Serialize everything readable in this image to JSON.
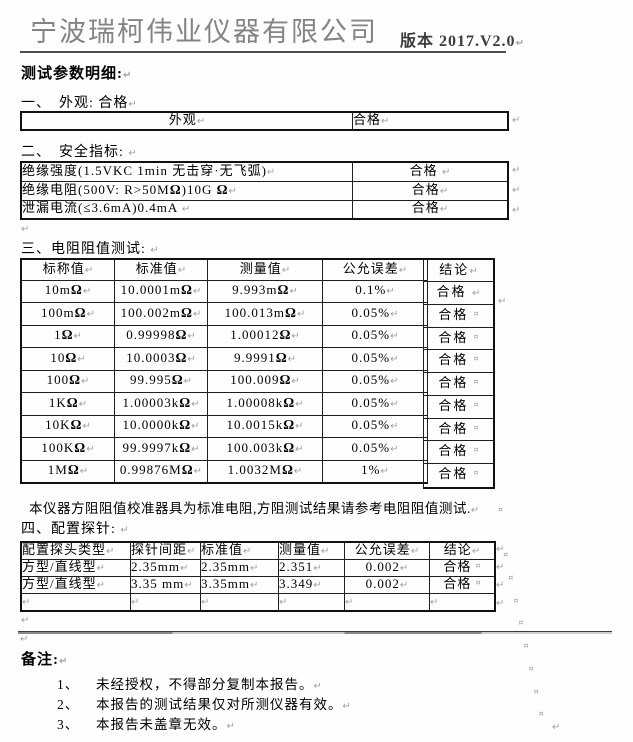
{
  "header": {
    "company": "宁波瑞柯伟业仪器有限公司",
    "version": "版本 2017.V2.0",
    "doc_title": "测试参数明细:"
  },
  "marks": {
    "para": "↵",
    "cell": "¤"
  },
  "sections": {
    "appearance": {
      "heading": "一、　外观: 合格",
      "cells": {
        "label": "外观",
        "result": "合格"
      }
    },
    "safety": {
      "heading": "二、　安全指标: ",
      "rows": [
        {
          "item": "绝缘强度(1.5VKC 1min 无击穿·无飞弧)",
          "result": "合格 "
        },
        {
          "item": "绝缘电阻(500V: R>50MΩ)10G Ω",
          "result": "合格"
        },
        {
          "item": "泄漏电流(≤3.6mA)0.4mA ",
          "result": "合格"
        }
      ]
    },
    "resistance": {
      "heading": "三、电阻阻值测试: ",
      "headers": [
        "标称值",
        "标准值",
        "测量值",
        "公允误差",
        "结论"
      ],
      "rows": [
        [
          "10mΩ",
          "10.0001mΩ",
          "9.993mΩ",
          "0.1%"
        ],
        [
          "100mΩ",
          "100.002mΩ",
          "100.013mΩ",
          "0.05%"
        ],
        [
          "1Ω",
          "0.99998Ω",
          "1.00012Ω",
          "0.05%"
        ],
        [
          "10Ω",
          "10.0003Ω",
          "9.9991Ω",
          "0.05%"
        ],
        [
          "100Ω",
          "99.995Ω",
          "100.009Ω",
          "0.05%"
        ],
        [
          "1KΩ",
          "1.00003kΩ",
          "1.00008kΩ",
          "0.05%"
        ],
        [
          "10KΩ",
          "10.0000kΩ",
          "10.0015kΩ",
          "0.05%"
        ],
        [
          "100KΩ",
          "99.9997kΩ",
          "100.003kΩ",
          "0.05%"
        ],
        [
          "1MΩ",
          "0.99876MΩ",
          "1.0032MΩ",
          "1%"
        ]
      ],
      "conclusions": [
        "合格",
        "合格",
        "合格",
        "合格",
        "合格",
        "合格",
        "合格",
        "合格",
        "合格"
      ],
      "note": "本仪器方阻阻值校准器具为标准电阻,方阻测试结果请参考电阻阻值测试."
    },
    "probe": {
      "heading": "四、配置探针: ",
      "headers": [
        "配置探头类型",
        "探针间距",
        "标准值",
        "测量值",
        "公允误差",
        "结论"
      ],
      "rows": [
        [
          "方型/直线型",
          "2.35mm",
          "2.35mm",
          "2.351",
          "0.002",
          "合格"
        ],
        [
          "方型/直线型",
          "3.35 mm",
          "3.35mm",
          "3.349",
          "0.002",
          "合格"
        ]
      ]
    },
    "remarks": {
      "heading": "备注:",
      "items": [
        {
          "num": "1、",
          "text": "未经授权，不得部分复制本报告。"
        },
        {
          "num": "2、",
          "text": "本报告的测试结果仅对所测仪器有效。"
        },
        {
          "num": "3、",
          "text": "本报告未盖章无效。"
        }
      ]
    }
  }
}
